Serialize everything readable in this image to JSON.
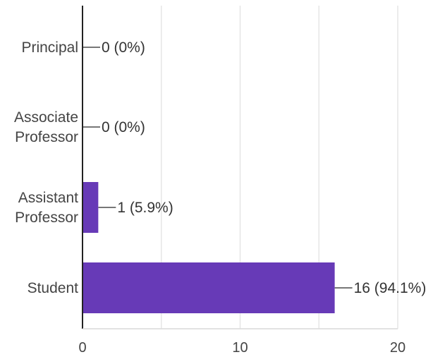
{
  "chart_data": {
    "type": "bar",
    "orientation": "horizontal",
    "categories": [
      [
        "Principal"
      ],
      [
        "Associate",
        "Professor"
      ],
      [
        "Assistant",
        "Professor"
      ],
      [
        "Student"
      ]
    ],
    "series": [
      {
        "values": [
          0,
          0,
          1,
          16
        ],
        "data_labels": [
          "0 (0%)",
          "0 (0%)",
          "1 (5.9%)",
          "16 (94.1%)"
        ]
      }
    ],
    "xlim": [
      0,
      20
    ],
    "xticks": [
      0,
      10,
      20
    ],
    "xtick_minor": [
      5,
      15
    ],
    "grid": true,
    "legend": "none",
    "colors": {
      "bar": "#673ab7",
      "grid": "#e6e6e6",
      "axis": "#222222",
      "leader": "#777777"
    }
  }
}
